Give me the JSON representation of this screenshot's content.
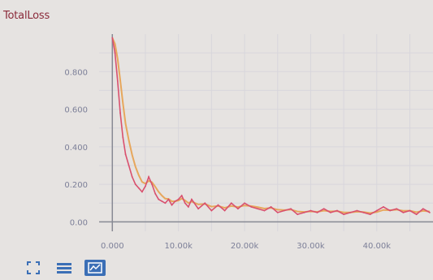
{
  "chart_data": {
    "type": "line",
    "title": "TotalLoss",
    "xlabel": "",
    "ylabel": "",
    "xlim": [
      -2000,
      48500
    ],
    "ylim": [
      -0.05,
      1.0
    ],
    "x_ticks": [
      0,
      10000,
      20000,
      30000,
      40000
    ],
    "x_tick_labels": [
      "0.000",
      "10.00k",
      "20.00k",
      "30.00k",
      "40.00k"
    ],
    "y_ticks": [
      0,
      0.2,
      0.4,
      0.6,
      0.8
    ],
    "y_tick_labels": [
      "0.00",
      "0.200",
      "0.400",
      "0.600",
      "0.800"
    ],
    "grid": true,
    "series": [
      {
        "color": "#d9506e",
        "smoothed_color": "#e7a04e",
        "x": [
          0,
          400,
          800,
          1200,
          1600,
          2000,
          2500,
          3000,
          3500,
          4000,
          4500,
          5000,
          5500,
          6000,
          6500,
          7000,
          7500,
          8000,
          8500,
          9000,
          9500,
          10000,
          10500,
          11000,
          11500,
          12000,
          13000,
          14000,
          15000,
          16000,
          17000,
          18000,
          19000,
          20000,
          21000,
          22000,
          23000,
          24000,
          25000,
          26000,
          27000,
          28000,
          29000,
          30000,
          31000,
          32000,
          33000,
          34000,
          35000,
          36000,
          37000,
          38000,
          39000,
          40000,
          41000,
          42000,
          43000,
          44000,
          45000,
          46000,
          47000,
          48000
        ],
        "y": [
          0.98,
          0.9,
          0.75,
          0.58,
          0.45,
          0.36,
          0.3,
          0.24,
          0.2,
          0.18,
          0.16,
          0.19,
          0.24,
          0.2,
          0.15,
          0.12,
          0.11,
          0.1,
          0.12,
          0.09,
          0.11,
          0.12,
          0.14,
          0.1,
          0.08,
          0.12,
          0.07,
          0.1,
          0.06,
          0.09,
          0.06,
          0.1,
          0.07,
          0.1,
          0.08,
          0.07,
          0.06,
          0.08,
          0.05,
          0.06,
          0.07,
          0.04,
          0.05,
          0.06,
          0.05,
          0.07,
          0.05,
          0.06,
          0.04,
          0.05,
          0.06,
          0.05,
          0.04,
          0.06,
          0.08,
          0.06,
          0.07,
          0.05,
          0.06,
          0.04,
          0.07,
          0.05
        ]
      }
    ]
  },
  "toolbar": {
    "buttons": [
      {
        "icon": "fit-domain-icon"
      },
      {
        "icon": "data-download-icon"
      },
      {
        "icon": "log-scale-icon",
        "active": true
      }
    ]
  },
  "colors": {
    "background": "#e6e3e1",
    "grid": "#d8d6dc",
    "axis": "#888a94",
    "title": "#8b2a3a",
    "active_button": "#3b6fb6"
  }
}
